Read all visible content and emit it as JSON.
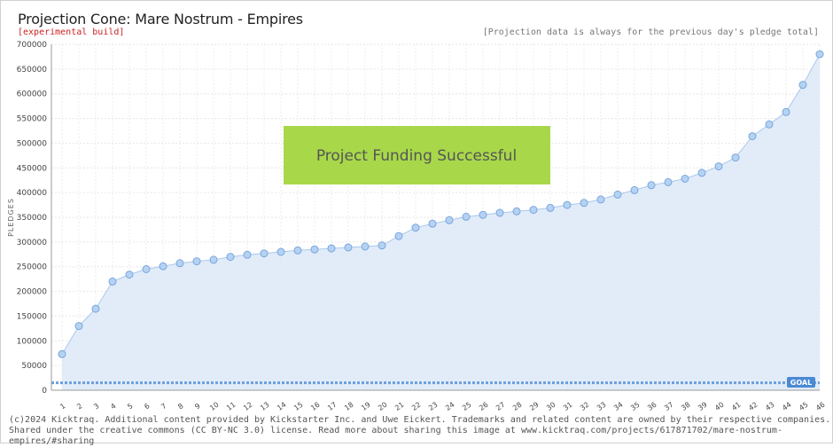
{
  "header": {
    "title": "Projection Cone: Mare Nostrum - Empires",
    "subtitle": "[experimental build]",
    "note": "[Projection data is always for the previous day's pledge total]"
  },
  "footer": {
    "line1": "(c)2024 Kicktraq. Additional content provided by Kickstarter Inc. and Uwe Eickert. Trademarks and related content are owned by their respective companies.",
    "line2": "Shared under the creative commons (CC BY-NC 3.0) license. Read more about sharing this image at www.kicktraq.com/projects/617871702/mare-nostrum-empires/#sharing"
  },
  "banner": {
    "text": "Project Funding Successful",
    "color": "#a8d84a"
  },
  "colors": {
    "line": "#a9c8ee",
    "area": "#dde9f8",
    "marker_fill": "#b5d2f2",
    "marker_stroke": "#7aa6dc",
    "goal_line": "#6a9fdc",
    "goal_badge": "#4a8ad4"
  },
  "chart_data": {
    "type": "area",
    "ylabel": "PLEDGES",
    "ylim": [
      0,
      700000
    ],
    "yticks": [
      0,
      50000,
      100000,
      150000,
      200000,
      250000,
      300000,
      350000,
      400000,
      450000,
      500000,
      550000,
      600000,
      650000,
      700000
    ],
    "ytick_labels": [
      "0",
      "50000",
      "100000",
      "150000",
      "200000",
      "250000",
      "300000",
      "350000",
      "400000",
      "450000",
      "500000",
      "550000",
      "600000",
      "650000",
      "700000"
    ],
    "x": [
      "1",
      "2",
      "3",
      "4",
      "5",
      "6",
      "7",
      "8",
      "9",
      "10",
      "11",
      "12",
      "13",
      "14",
      "15",
      "16",
      "17",
      "18",
      "19",
      "20",
      "21",
      "22",
      "23",
      "24",
      "25",
      "26",
      "27",
      "28",
      "29",
      "30",
      "31",
      "32",
      "33",
      "34",
      "35",
      "36",
      "37",
      "38",
      "39",
      "40",
      "41",
      "42",
      "43",
      "44",
      "45",
      "46"
    ],
    "series": [
      {
        "values": [
          73000,
          130000,
          165000,
          220000,
          234000,
          245000,
          251000,
          257000,
          261000,
          264000,
          270000,
          274000,
          277000,
          280000,
          283000,
          285000,
          287000,
          289000,
          291000,
          293000,
          312000,
          329000,
          337000,
          344000,
          351000,
          355000,
          359000,
          362000,
          365000,
          369000,
          375000,
          379000,
          386000,
          396000,
          405000,
          415000,
          421000,
          428000,
          440000,
          453000,
          471000,
          514000,
          538000,
          563000,
          618000,
          680000
        ]
      }
    ],
    "goal": {
      "label": "GOAL",
      "value": 15000
    },
    "grid": true
  }
}
